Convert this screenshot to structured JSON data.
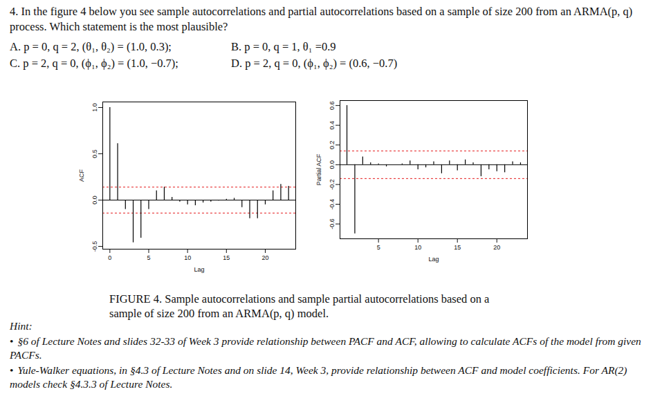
{
  "question": "4. In the figure 4 below you see sample autocorrelations and partial autocorrelations based on a sample of size 200 from an ARMA(p, q) process. Which statement is the most plausible?",
  "options": [
    "A. p = 0, q = 2, (θ₁, θ₂) = (1.0, 0.3);",
    "B. p = 0, q = 1, θ₁ =0.9",
    "C. p = 2, q = 0, (ϕ₁, ϕ₂) = (1.0, −0.7);",
    "D. p = 2, q = 0, (ϕ₁, ϕ₂) = (0.6, −0.7)"
  ],
  "chart_data": [
    {
      "type": "bar",
      "x_label": "Lag",
      "y_label": "ACF",
      "color": "#000000",
      "x": [
        0,
        1,
        2,
        3,
        4,
        5,
        6,
        7,
        8,
        9,
        10,
        11,
        12,
        13,
        14,
        15,
        16,
        17,
        18,
        19,
        20,
        21,
        22,
        23
      ],
      "values": [
        1.0,
        0.61,
        -0.1,
        -0.46,
        -0.41,
        -0.1,
        0.1,
        0.14,
        0.03,
        -0.02,
        -0.05,
        -0.06,
        -0.03,
        -0.02,
        -0.01,
        0.01,
        0.02,
        -0.08,
        -0.2,
        -0.2,
        -0.05,
        0.1,
        0.17,
        0.15
      ],
      "xlim": [
        -0.92,
        23.92
      ],
      "xticks": [
        0,
        5,
        10,
        15,
        20
      ],
      "ylim": [
        -0.53,
        1.06
      ],
      "yticks": [
        -0.5,
        {
          "value": 0,
          "label": "0.0"
        },
        0.5,
        {
          "value": 1,
          "label": "1.0"
        }
      ],
      "bounds": {
        "values": [
          -0.14,
          0.14
        ],
        "color": "#e41a1c",
        "line_style": "dashed"
      }
    },
    {
      "type": "bar",
      "x_label": "Lag",
      "y_label": "Partial ACF",
      "color": "#000000",
      "x": [
        1,
        2,
        3,
        4,
        5,
        6,
        7,
        8,
        9,
        10,
        11,
        12,
        13,
        14,
        15,
        16,
        17,
        18,
        19,
        20,
        21,
        22,
        23
      ],
      "values": [
        0.6,
        -0.7,
        0.08,
        0.02,
        0.01,
        -0.02,
        0.0,
        0.01,
        0.04,
        -0.05,
        -0.03,
        0.03,
        -0.09,
        0.04,
        -0.06,
        0.05,
        0.02,
        -0.12,
        -0.05,
        -0.07,
        -0.08,
        0.03,
        0.02
      ],
      "xlim": [
        0.12,
        23.88
      ],
      "xticks": [
        5,
        10,
        15,
        20
      ],
      "ylim": [
        -0.75,
        0.65
      ],
      "yticks": [
        -0.6,
        -0.4,
        -0.2,
        {
          "value": 0,
          "label": "0.0"
        },
        0.2,
        0.4,
        0.6
      ],
      "bounds": {
        "values": [
          -0.14,
          0.14
        ],
        "color": "#e41a1c",
        "line_style": "dashed"
      }
    }
  ],
  "caption": {
    "label": "FIGURE 4.",
    "text": "Sample autocorrelations and sample partial autocorrelations based on a sample of size 200 from an ARMA(p, q) model."
  },
  "hint": {
    "title": "Hint:",
    "items": [
      "§6 of Lecture Notes and slides 32-33 of Week 3 provide relationship between PACF and ACF, allowing to calculate ACFs of the model from given PACFs.",
      "Yule-Walker equations, in §4.3 of Lecture Notes and on slide 14, Week 3, provide relationship between ACF and model coefficients. For AR(2) models check §4.3.3 of Lecture Notes."
    ]
  }
}
